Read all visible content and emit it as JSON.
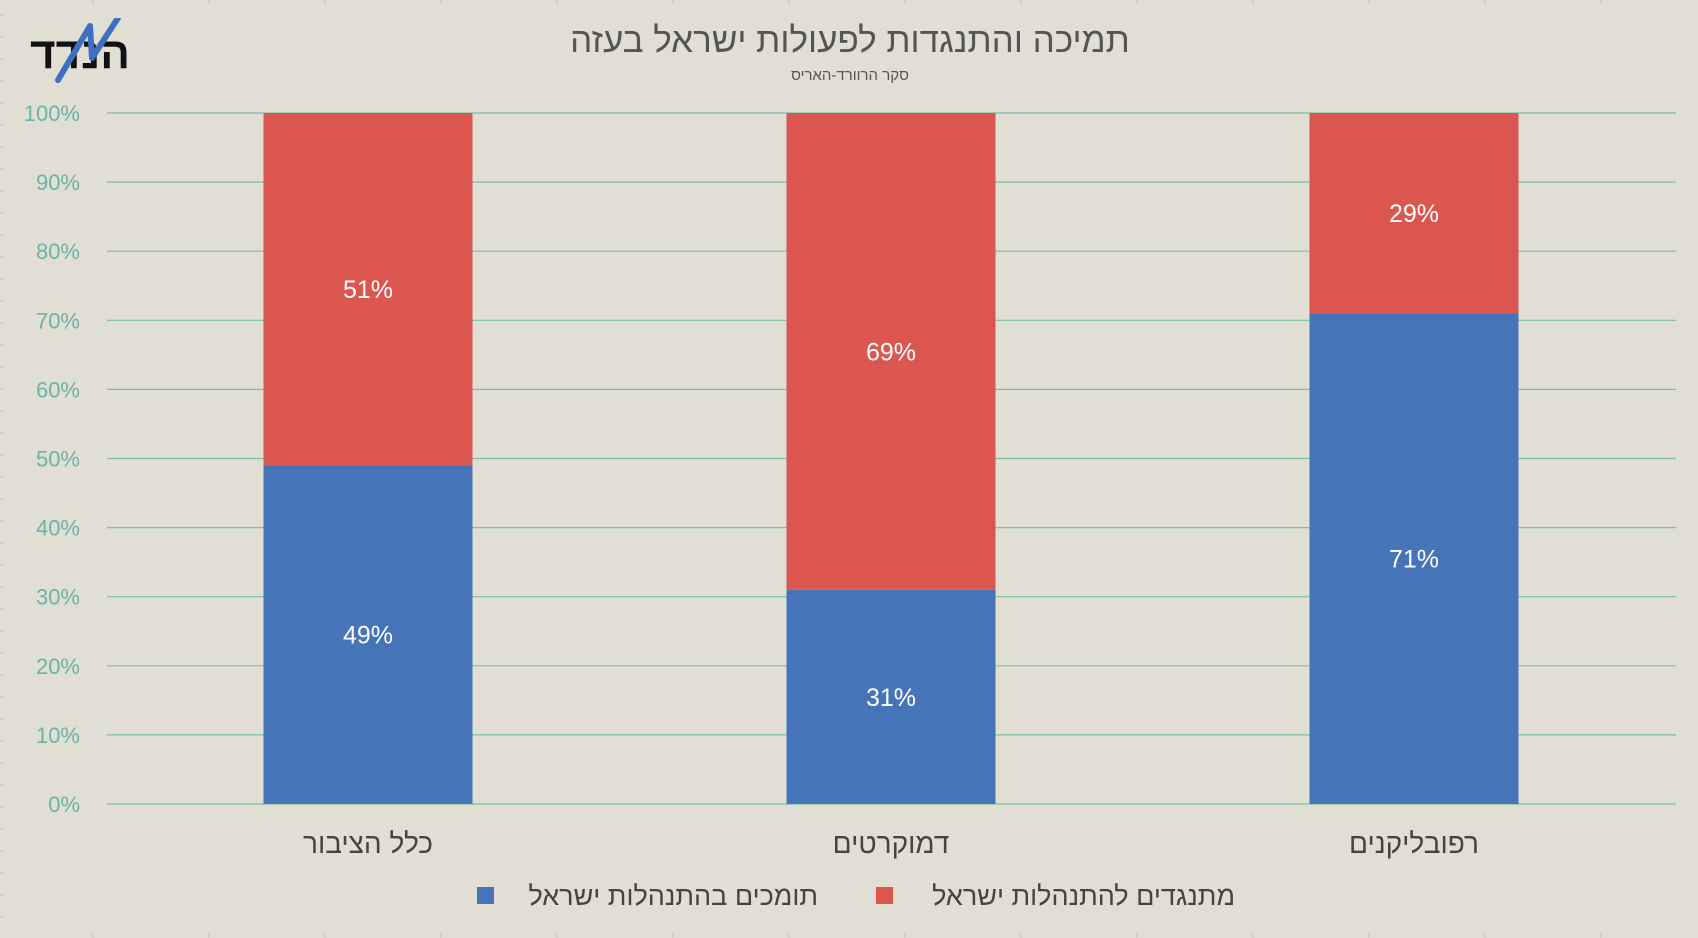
{
  "logo_text": "הנדד",
  "chart_data": {
    "type": "bar",
    "stacked": true,
    "title": "תמיכה והתנגדות לפעולות ישראל בעזה",
    "subtitle": "סקר הרוורד-האריס",
    "categories": [
      "כלל הציבור",
      "דמוקרטים",
      "רפובליקנים"
    ],
    "series": [
      {
        "name": "תומכים בהתנהלות ישראל",
        "values": [
          49,
          31,
          71
        ],
        "color": "#4674b8",
        "labels": [
          "49%",
          "31%",
          "71%"
        ]
      },
      {
        "name": "מתנגדים להתנהלות ישראל",
        "values": [
          51,
          69,
          29
        ],
        "color": "#dc5650",
        "labels": [
          "51%",
          "69%",
          "29%"
        ]
      }
    ],
    "ylim": [
      0,
      100
    ],
    "yticks": [
      "0%",
      "10%",
      "20%",
      "30%",
      "40%",
      "50%",
      "60%",
      "70%",
      "80%",
      "90%",
      "100%"
    ],
    "grid": true,
    "legend_position": "bottom",
    "colors": {
      "background": "#e1dfd4",
      "grid": "#7bbfa9",
      "tick_text": "#6bb3a6",
      "title_text": "#555555",
      "category_text": "#444444"
    }
  }
}
